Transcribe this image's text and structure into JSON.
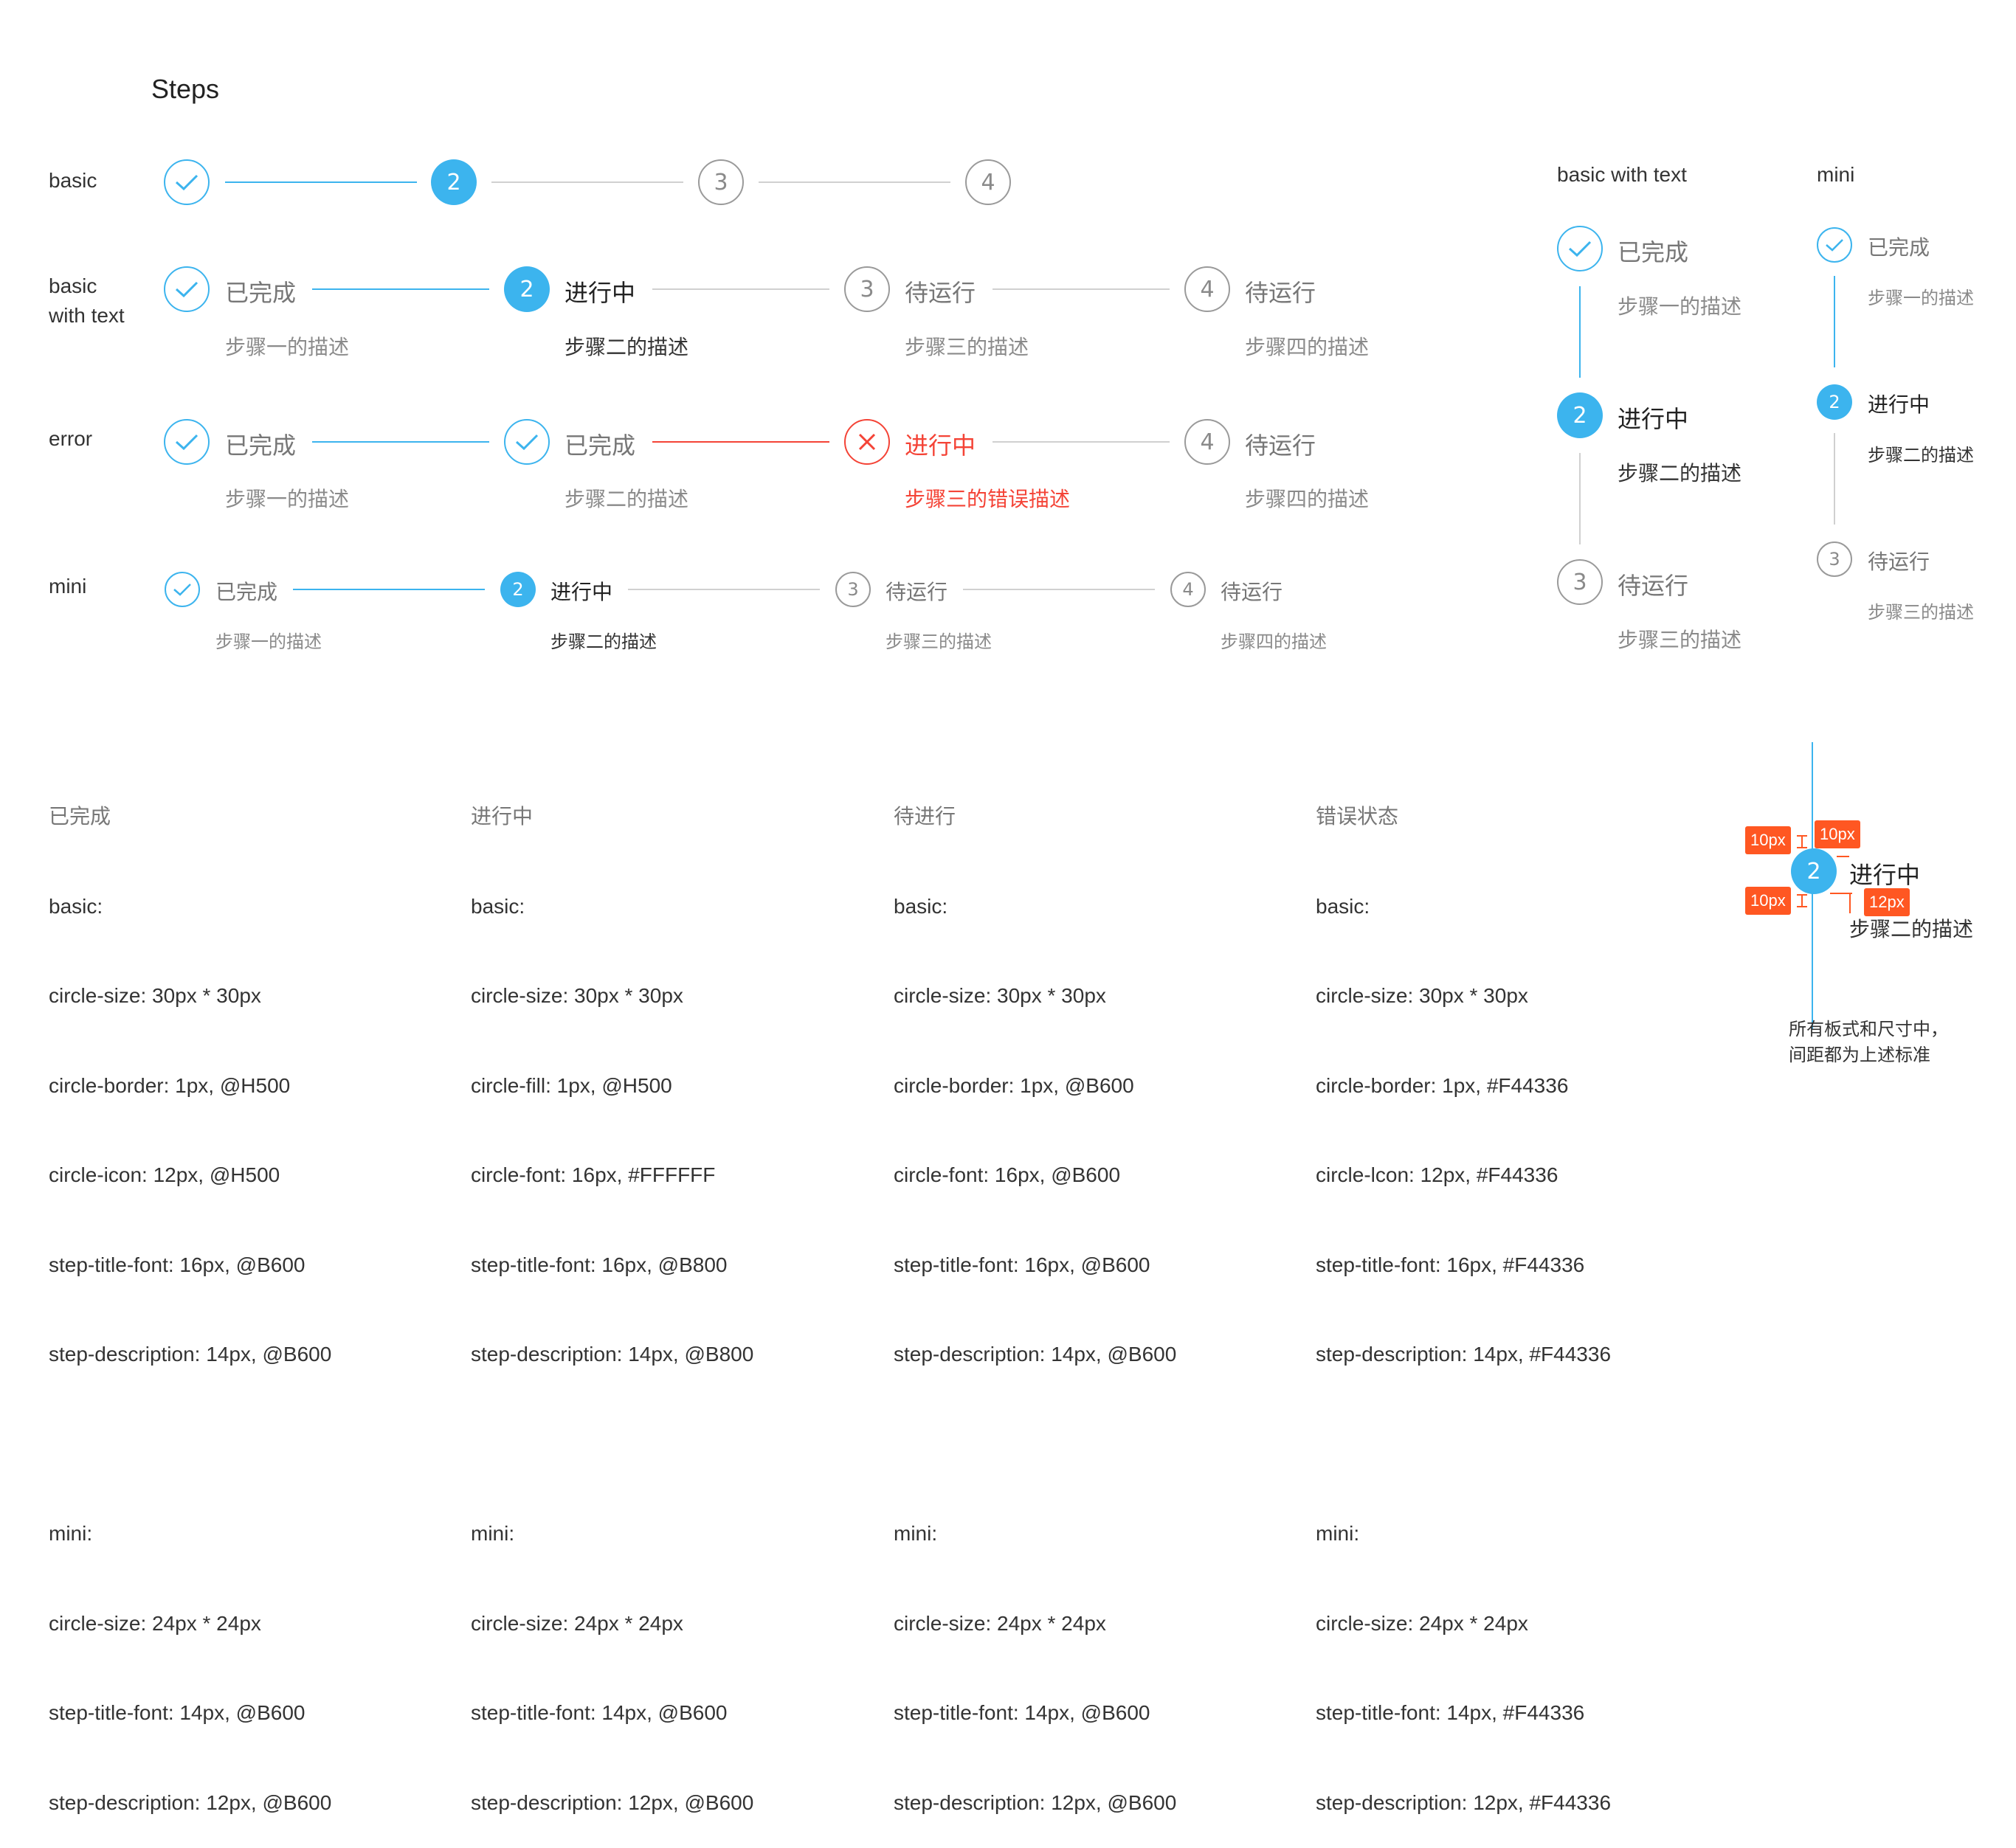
{
  "page_title": "Steps",
  "colors": {
    "primary": "#3CB4EE",
    "error": "#F44336",
    "line_gray": "#D0D0D0",
    "annotation": "#FF5722"
  },
  "rows": {
    "basic": "basic",
    "basic_text": "basic\nwith text",
    "error": "error",
    "mini": "mini"
  },
  "steps": {
    "nums": [
      "2",
      "3",
      "4"
    ],
    "titles": {
      "done": "已完成",
      "active": "进行中",
      "wait": "待运行",
      "error": "进行中"
    },
    "desc": [
      "步骤一的描述",
      "步骤二的描述",
      "步骤三的描述",
      "步骤四的描述",
      "步骤三的错误描述"
    ]
  },
  "vertical": {
    "basic_label": "basic with text",
    "mini_label": "mini"
  },
  "specs": [
    {
      "title": "已完成",
      "lines": [
        "basic:",
        "circle-size: 30px * 30px",
        "circle-border: 1px, @H500",
        "circle-icon: 12px, @H500",
        "step-title-font: 16px, @B600",
        "step-description: 14px, @B600",
        "",
        "mini:",
        "circle-size: 24px * 24px",
        "step-title-font: 14px, @B600",
        "step-description: 12px, @B600"
      ]
    },
    {
      "title": "进行中",
      "lines": [
        "basic:",
        "circle-size: 30px * 30px",
        "circle-fill: 1px, @H500",
        "circle-font: 16px, #FFFFFF",
        "step-title-font: 16px, @B800",
        "step-description: 14px, @B800",
        "",
        "mini:",
        "circle-size: 24px * 24px",
        "step-title-font: 14px, @B600",
        "step-description: 12px, @B600"
      ]
    },
    {
      "title": "待进行",
      "lines": [
        "basic:",
        "circle-size: 30px * 30px",
        "circle-border: 1px, @B600",
        "circle-font: 16px, @B600",
        "step-title-font: 16px, @B600",
        "step-description: 14px, @B600",
        "",
        "mini:",
        "circle-size: 24px * 24px",
        "step-title-font: 14px, @B600",
        "step-description: 12px, @B600"
      ]
    },
    {
      "title": "错误状态",
      "lines": [
        "basic:",
        "circle-size: 30px * 30px",
        "circle-border: 1px, #F44336",
        "circle-lcon: 12px, #F44336",
        "step-title-font: 16px, #F44336",
        "step-description: 14px, #F44336",
        "",
        "mini:",
        "circle-size: 24px * 24px",
        "step-title-font: 14px, #F44336",
        "step-description: 12px, #F44336"
      ]
    }
  ],
  "annotation": {
    "tags": [
      "10px",
      "10px",
      "10px",
      "12px"
    ],
    "step_number": "2",
    "step_title": "进行中",
    "step_desc": "步骤二的描述",
    "note": "所有板式和尺寸中，\n间距都为上述标准"
  }
}
